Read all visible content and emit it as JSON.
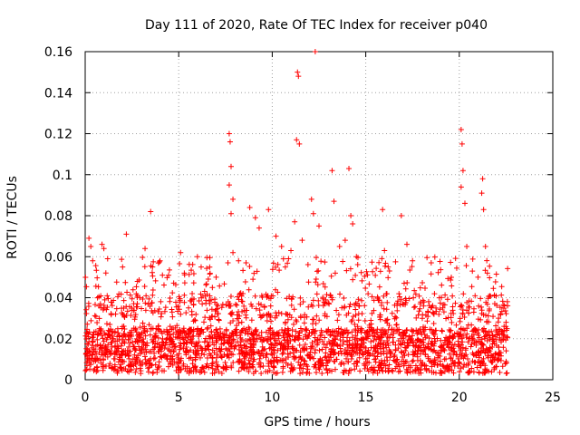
{
  "chart_data": {
    "type": "scatter",
    "title": "Day 111 of 2020, Rate Of TEC Index for receiver p040",
    "xlabel": "GPS time / hours",
    "ylabel": "ROTI / TECUs",
    "xlim": [
      0,
      25
    ],
    "ylim": [
      0,
      0.16
    ],
    "xticks": [
      0,
      5,
      10,
      15,
      20,
      25
    ],
    "xtick_labels": [
      "0",
      "5",
      "10",
      "15",
      "20",
      "25"
    ],
    "yticks": [
      0,
      0.02,
      0.04,
      0.06,
      0.08,
      0.1,
      0.12,
      0.14,
      0.16
    ],
    "ytick_labels": [
      "0",
      "0.02",
      "0.04",
      "0.06",
      "0.08",
      "0.1",
      "0.12",
      "0.14",
      "0.16"
    ],
    "grid": true,
    "marker": "+",
    "color": "#ff0000",
    "data_range_hours": [
      0,
      22.6
    ],
    "series": [
      {
        "name": "ROTI",
        "points": [
          [
            0.2,
            0.069
          ],
          [
            0.3,
            0.065
          ],
          [
            0.4,
            0.058
          ],
          [
            0.9,
            0.066
          ],
          [
            1.0,
            0.064
          ],
          [
            1.2,
            0.059
          ],
          [
            2.2,
            0.071
          ],
          [
            2.0,
            0.055
          ],
          [
            3.2,
            0.064
          ],
          [
            3.5,
            0.082
          ],
          [
            3.6,
            0.055
          ],
          [
            4.0,
            0.058
          ],
          [
            5.1,
            0.062
          ],
          [
            5.3,
            0.052
          ],
          [
            6.0,
            0.06
          ],
          [
            6.2,
            0.055
          ],
          [
            6.8,
            0.045
          ],
          [
            7.0,
            0.05
          ],
          [
            7.7,
            0.12
          ],
          [
            7.75,
            0.116
          ],
          [
            7.8,
            0.104
          ],
          [
            7.7,
            0.095
          ],
          [
            7.9,
            0.088
          ],
          [
            7.8,
            0.081
          ],
          [
            7.9,
            0.062
          ],
          [
            8.2,
            0.058
          ],
          [
            8.6,
            0.057
          ],
          [
            8.8,
            0.084
          ],
          [
            9.1,
            0.079
          ],
          [
            9.3,
            0.074
          ],
          [
            9.8,
            0.083
          ],
          [
            10.2,
            0.07
          ],
          [
            10.5,
            0.065
          ],
          [
            10.7,
            0.055
          ],
          [
            11.0,
            0.063
          ],
          [
            11.2,
            0.077
          ],
          [
            11.35,
            0.15
          ],
          [
            11.4,
            0.148
          ],
          [
            11.3,
            0.117
          ],
          [
            11.45,
            0.115
          ],
          [
            11.6,
            0.068
          ],
          [
            12.1,
            0.088
          ],
          [
            12.2,
            0.081
          ],
          [
            12.3,
            0.16
          ],
          [
            12.5,
            0.075
          ],
          [
            13.2,
            0.102
          ],
          [
            13.3,
            0.087
          ],
          [
            13.6,
            0.065
          ],
          [
            13.9,
            0.068
          ],
          [
            14.1,
            0.103
          ],
          [
            14.2,
            0.08
          ],
          [
            14.3,
            0.076
          ],
          [
            14.5,
            0.06
          ],
          [
            15.9,
            0.083
          ],
          [
            16.0,
            0.063
          ],
          [
            16.2,
            0.055
          ],
          [
            16.9,
            0.08
          ],
          [
            17.2,
            0.066
          ],
          [
            17.5,
            0.058
          ],
          [
            18.5,
            0.057
          ],
          [
            20.1,
            0.122
          ],
          [
            20.15,
            0.115
          ],
          [
            20.2,
            0.102
          ],
          [
            20.1,
            0.094
          ],
          [
            20.3,
            0.086
          ],
          [
            20.4,
            0.065
          ],
          [
            20.7,
            0.053
          ],
          [
            21.0,
            0.05
          ],
          [
            21.2,
            0.091
          ],
          [
            21.25,
            0.098
          ],
          [
            21.3,
            0.083
          ],
          [
            21.4,
            0.065
          ],
          [
            21.5,
            0.052
          ],
          [
            22.1,
            0.03
          ],
          [
            22.5,
            0.028
          ]
        ]
      }
    ]
  }
}
